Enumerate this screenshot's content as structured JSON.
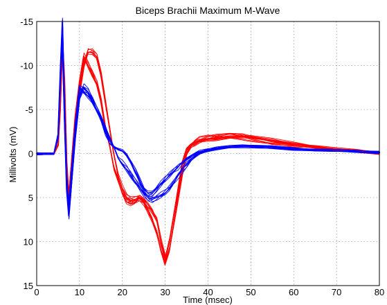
{
  "chart_data": {
    "type": "line",
    "title": "Biceps Brachii Maximum M-Wave",
    "xlabel": "Time (msec)",
    "ylabel": "Millivolts (mV)",
    "xlim": [
      0,
      80
    ],
    "ylim": [
      15,
      -15
    ],
    "y_axis_inverted": true,
    "grid": true,
    "x_ticks": [
      "0",
      "10",
      "20",
      "30",
      "40",
      "50",
      "60",
      "70",
      "80"
    ],
    "y_ticks": [
      "-15",
      "-10",
      "-5",
      "0",
      "5",
      "10",
      "15"
    ],
    "series": [
      {
        "color": "#ff0000",
        "x": [
          0,
          4,
          5,
          5.5,
          6,
          6.5,
          7,
          7.5,
          8,
          9,
          10,
          11,
          12,
          13,
          14,
          15,
          16,
          17,
          18,
          19,
          20,
          21,
          22,
          23,
          24,
          25,
          26,
          27,
          28,
          29,
          30,
          31,
          32,
          33,
          34,
          35,
          36,
          37,
          38,
          40,
          42,
          45,
          48,
          50,
          55,
          60,
          65,
          70,
          75,
          80
        ],
        "y": [
          0,
          0,
          -1,
          -6,
          -13,
          -8,
          1,
          5,
          2,
          -4,
          -8,
          -11,
          -10,
          -9,
          -8,
          -6,
          -3,
          -1,
          1.5,
          3,
          4.5,
          5.5,
          5.7,
          5.5,
          5,
          5.2,
          5.8,
          6.5,
          7.5,
          10,
          12,
          10,
          7,
          4,
          1,
          -0.5,
          -1,
          -1.3,
          -1.5,
          -1.7,
          -1.8,
          -2,
          -2,
          -1.9,
          -1.5,
          -1.1,
          -0.8,
          -0.5,
          -0.3,
          0
        ]
      },
      {
        "color": "#ff0000",
        "x": [
          0,
          4,
          5,
          5.5,
          6,
          6.5,
          7,
          7.5,
          8,
          9,
          10,
          11,
          12,
          13,
          14,
          15,
          16,
          17,
          18,
          19,
          20,
          21,
          22,
          23,
          24,
          25,
          26,
          27,
          28,
          29,
          30,
          31,
          32,
          33,
          34,
          35,
          36,
          37,
          38,
          40,
          42,
          45,
          48,
          50,
          55,
          60,
          65,
          70,
          75,
          80
        ],
        "y": [
          0,
          0,
          -1,
          -5,
          -12,
          -7,
          2,
          5,
          3,
          -3,
          -7,
          -10,
          -11.5,
          -11.5,
          -11,
          -9,
          -6,
          -3,
          0,
          2.5,
          4,
          5,
          5.3,
          5.2,
          5,
          5.5,
          6.5,
          7.5,
          9,
          11,
          12.5,
          11,
          8,
          5,
          2,
          0,
          -0.8,
          -1.2,
          -1.4,
          -1.6,
          -1.7,
          -1.9,
          -1.9,
          -1.8,
          -1.4,
          -1,
          -0.7,
          -0.4,
          -0.2,
          0
        ]
      },
      {
        "color": "#0000ff",
        "x": [
          0,
          4,
          5,
          5.5,
          6,
          6.5,
          7,
          7.5,
          8,
          9,
          10,
          11,
          12,
          13,
          14,
          15,
          16,
          17,
          18,
          19,
          20,
          21,
          22,
          23,
          24,
          25,
          26,
          27,
          28,
          29,
          30,
          31,
          32,
          33,
          34,
          35,
          36,
          37,
          38,
          40,
          42,
          45,
          48,
          50,
          55,
          60,
          65,
          70,
          75,
          80
        ],
        "y": [
          0,
          0,
          -2,
          -9,
          -15,
          -5,
          3,
          6,
          3,
          -3,
          -7.5,
          -7,
          -6.5,
          -6,
          -5,
          -4,
          -2.5,
          -1.5,
          -0.8,
          -0.5,
          -0.3,
          0.2,
          1,
          2,
          3,
          4,
          4.5,
          4.5,
          4,
          3.5,
          3,
          2.5,
          2,
          1.5,
          1,
          0.6,
          0.3,
          0,
          -0.2,
          -0.4,
          -0.6,
          -0.8,
          -0.9,
          -0.9,
          -0.8,
          -0.6,
          -0.4,
          -0.3,
          -0.2,
          -0.1
        ]
      },
      {
        "color": "#0000ff",
        "x": [
          0,
          4,
          5,
          5.5,
          6,
          6.5,
          7,
          7.5,
          8,
          9,
          10,
          11,
          12,
          13,
          14,
          15,
          16,
          17,
          18,
          19,
          20,
          21,
          22,
          23,
          24,
          25,
          26,
          27,
          28,
          29,
          30,
          31,
          32,
          33,
          34,
          35,
          36,
          37,
          38,
          40,
          42,
          45,
          48,
          50,
          55,
          60,
          65,
          70,
          75,
          80
        ],
        "y": [
          0,
          0,
          -2,
          -8,
          -13,
          -4,
          4,
          7,
          4,
          -2,
          -6.5,
          -7.5,
          -7,
          -6,
          -5,
          -4,
          -3,
          -1.8,
          -0.8,
          0.5,
          1.2,
          1.8,
          2.5,
          3.2,
          3.8,
          4.5,
          5,
          5.2,
          5,
          4.8,
          4.5,
          4,
          3.3,
          2.5,
          1.8,
          1.2,
          0.7,
          0.3,
          0,
          -0.3,
          -0.5,
          -0.7,
          -0.8,
          -0.8,
          -0.7,
          -0.5,
          -0.4,
          -0.3,
          -0.2,
          -0.1
        ]
      }
    ]
  }
}
